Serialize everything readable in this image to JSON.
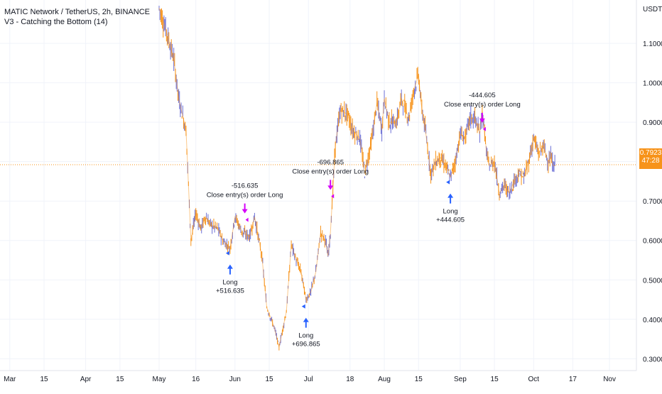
{
  "header": {
    "title": "MATIC Network / TetherUS, 2h, BINANCE",
    "indicator": "V3 - Catching the Bottom (14)"
  },
  "price_tag": {
    "price": "0.7923",
    "countdown": "47:28"
  },
  "colors": {
    "candle_up": "#6b6fd6",
    "candle_down": "#f7931a",
    "long_arrow": "#2962ff",
    "close_marker": "#d500f9",
    "price_line": "#f7931a",
    "grid": "#f0f3fa"
  },
  "chart_data": {
    "type": "line",
    "title": "MATIC Network / TetherUS, 2h, BINANCE",
    "y_unit": "USDT",
    "ylim": [
      0.27,
      1.21
    ],
    "y_ticks": [
      "1.1000",
      "1.0000",
      "0.9000",
      "0.8000",
      "0.7000",
      "0.6000",
      "0.5000",
      "0.4000",
      "0.3000"
    ],
    "y_tick_values": [
      1.1,
      1.0,
      0.9,
      0.8,
      0.7,
      0.6,
      0.5,
      0.4,
      0.3
    ],
    "x_ticks": [
      "Mar",
      "15",
      "Apr",
      "15",
      "May",
      "16",
      "Jun",
      "15",
      "Jul",
      "18",
      "Aug",
      "15",
      "Sep",
      "15",
      "Oct",
      "17",
      "Nov"
    ],
    "x_tick_days": [
      0,
      14,
      31,
      45,
      61,
      76,
      92,
      106,
      122,
      139,
      153,
      167,
      184,
      198,
      214,
      230,
      245
    ],
    "xlim_days": [
      -4,
      256
    ],
    "grid": true,
    "series": [
      {
        "name": "",
        "x_days": [
          61,
          64,
          67,
          69,
          72,
          74,
          76,
          78,
          80,
          82,
          85,
          87,
          90,
          92,
          95,
          98,
          100,
          103,
          105,
          108,
          110,
          113,
          115,
          117,
          119,
          121,
          123,
          125,
          127,
          129,
          130,
          131,
          133,
          135,
          138,
          139,
          140,
          143,
          145,
          148,
          150,
          152,
          153,
          155,
          158,
          160,
          163,
          165,
          167,
          168,
          170,
          172,
          174,
          176,
          178,
          180,
          182,
          184,
          186,
          188,
          190,
          192,
          193,
          195,
          196,
          198,
          200,
          202,
          204,
          206,
          208,
          210,
          212,
          214,
          216,
          218,
          219,
          220,
          221,
          222,
          223
        ],
        "values": [
          1.19,
          1.13,
          1.06,
          0.96,
          0.88,
          0.6,
          0.67,
          0.63,
          0.66,
          0.64,
          0.63,
          0.6,
          0.58,
          0.66,
          0.62,
          0.61,
          0.66,
          0.56,
          0.43,
          0.38,
          0.33,
          0.42,
          0.59,
          0.55,
          0.52,
          0.45,
          0.47,
          0.52,
          0.62,
          0.6,
          0.56,
          0.62,
          0.84,
          0.93,
          0.92,
          0.9,
          0.88,
          0.86,
          0.77,
          0.86,
          0.95,
          0.88,
          0.96,
          0.9,
          0.9,
          0.96,
          0.91,
          0.98,
          1.02,
          0.95,
          0.87,
          0.77,
          0.8,
          0.81,
          0.79,
          0.76,
          0.8,
          0.87,
          0.86,
          0.91,
          0.91,
          0.87,
          0.93,
          0.81,
          0.79,
          0.8,
          0.72,
          0.74,
          0.72,
          0.75,
          0.77,
          0.76,
          0.8,
          0.86,
          0.82,
          0.84,
          0.82,
          0.8,
          0.81,
          0.79,
          0.79
        ]
      }
    ],
    "annotations": [
      {
        "kind": "long",
        "day": 90,
        "price": 0.575,
        "label": "Long",
        "value": "+516.635"
      },
      {
        "kind": "close",
        "day": 96,
        "price": 0.665,
        "label": "Close entry(s) order Long",
        "value": "-516.635"
      },
      {
        "kind": "long",
        "day": 121,
        "price": 0.44,
        "label": "Long",
        "value": "+696.865"
      },
      {
        "kind": "close",
        "day": 131,
        "price": 0.725,
        "label": "Close entry(s) order Long",
        "value": "-696.865"
      },
      {
        "kind": "long",
        "day": 180,
        "price": 0.755,
        "label": "Long",
        "value": "+444.605"
      },
      {
        "kind": "close",
        "day": 193,
        "price": 0.895,
        "label": "Close entry(s) order Long",
        "value": "-444.605"
      }
    ],
    "last_price": 0.7923
  }
}
